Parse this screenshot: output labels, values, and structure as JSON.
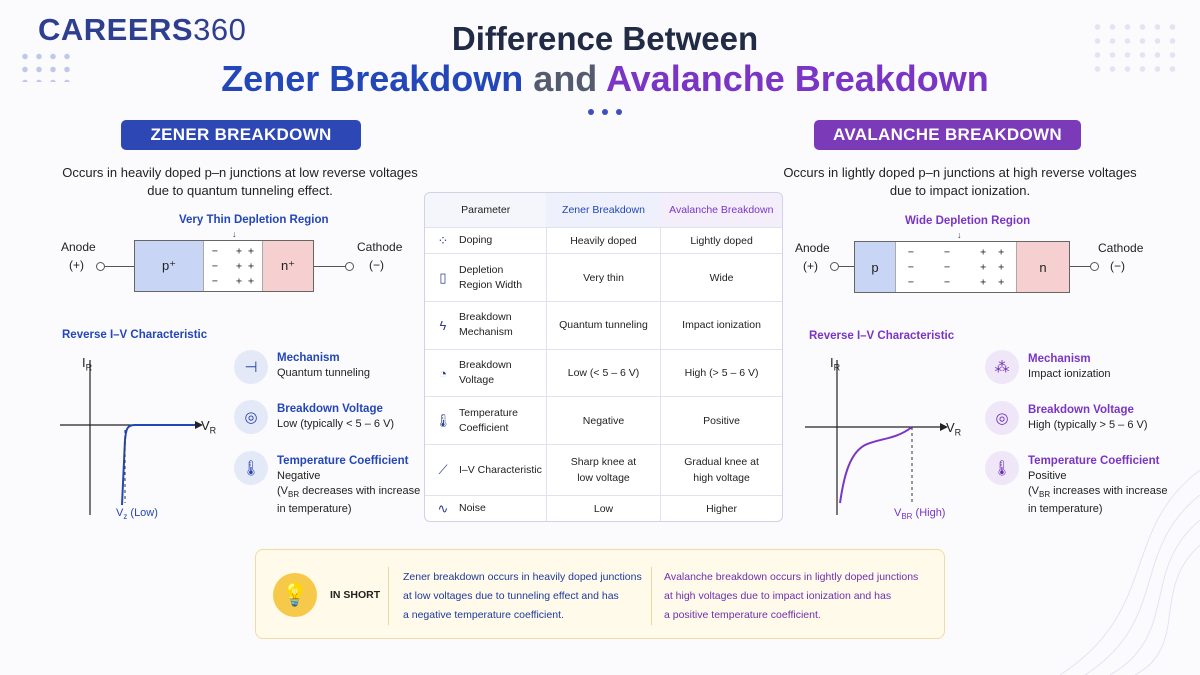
{
  "logo": {
    "word": "CAREERS",
    "number": "360"
  },
  "title": {
    "line1": "Difference Between",
    "zener": "Zener Breakdown",
    "and": "and",
    "avalanche": "Avalanche Breakdown"
  },
  "zener": {
    "pill": "ZENER BREAKDOWN",
    "desc1": "Occurs in heavily doped p–n junctions at low reverse voltages",
    "desc2": "due to quantum tunneling effect.",
    "region_label": "Very Thin Depletion Region",
    "anode": "Anode",
    "anode_sign": "(+)",
    "cathode": "Cathode",
    "cathode_sign": "(−)",
    "p_label": "p⁺",
    "n_label": "n⁺",
    "iv_title": "Reverse I–V Characteristic",
    "ir": "I",
    "ir_sub": "R",
    "vr": "V",
    "vr_sub": "R",
    "vz_label": "V",
    "vz_sub": "z",
    "vz_tail": " (Low)",
    "features": [
      {
        "icon": "mechanism-icon",
        "title": "Mechanism",
        "lines": [
          "Quantum tunneling"
        ]
      },
      {
        "icon": "target-icon",
        "title": "Breakdown Voltage",
        "lines": [
          "Low (typically < 5 – 6 V)"
        ]
      },
      {
        "icon": "thermometer-icon",
        "title": "Temperature Coefficient",
        "lines": [
          "Negative",
          "(V",
          "BR",
          " decreases with increase",
          "in temperature)"
        ]
      }
    ]
  },
  "avalanche": {
    "pill": "AVALANCHE BREAKDOWN",
    "desc1": "Occurs in lightly doped p–n junctions at high reverse voltages",
    "desc2": "due to impact ionization.",
    "region_label": "Wide Depletion Region",
    "anode": "Anode",
    "anode_sign": "(+)",
    "cathode": "Cathode",
    "cathode_sign": "(−)",
    "p_label": "p",
    "n_label": "n",
    "iv_title": "Reverse I–V Characteristic",
    "ir": "I",
    "ir_sub": "R",
    "vr": "V",
    "vr_sub": "R",
    "vbr_label": "V",
    "vbr_sub": "BR",
    "vbr_tail": " (High)",
    "features": [
      {
        "icon": "network-icon",
        "title": "Mechanism",
        "lines": [
          "Impact ionization"
        ]
      },
      {
        "icon": "target-icon",
        "title": "Breakdown Voltage",
        "lines": [
          "High (typically > 5 – 6 V)"
        ]
      },
      {
        "icon": "thermometer-icon",
        "title": "Temperature Coefficient",
        "lines": [
          "Positive",
          "(V",
          "BR",
          " increases with increase",
          "in temperature)"
        ]
      }
    ]
  },
  "table": {
    "headers": [
      "Parameter",
      "Zener Breakdown",
      "Avalanche Breakdown"
    ],
    "rows": [
      {
        "icon": "doping-icon",
        "glyph": "⁘",
        "param": [
          "Doping"
        ],
        "zener": [
          "Heavily doped"
        ],
        "avalanche": [
          "Lightly doped"
        ]
      },
      {
        "icon": "region-width-icon",
        "glyph": "▯",
        "param": [
          "Depletion",
          "Region Width"
        ],
        "zener": [
          "Very thin"
        ],
        "avalanche": [
          "Wide"
        ]
      },
      {
        "icon": "lightning-icon",
        "glyph": "ϟ",
        "param": [
          "Breakdown",
          "Mechanism"
        ],
        "zener": [
          "Quantum tunneling"
        ],
        "avalanche": [
          "Impact ionization"
        ]
      },
      {
        "icon": "gauge-icon",
        "glyph": "◔",
        "param": [
          "Breakdown",
          "Voltage"
        ],
        "zener": [
          "Low (< 5 – 6 V)"
        ],
        "avalanche": [
          "High (> 5 – 6 V)"
        ]
      },
      {
        "icon": "thermometer-icon",
        "glyph": "🌡",
        "param": [
          "Temperature",
          "Coefficient"
        ],
        "zener": [
          "Negative"
        ],
        "avalanche": [
          "Positive"
        ]
      },
      {
        "icon": "iv-curve-icon",
        "glyph": "⟋",
        "param": [
          "I–V Characteristic"
        ],
        "zener": [
          "Sharp knee at",
          "low voltage"
        ],
        "avalanche": [
          "Gradual knee at",
          "high voltage"
        ]
      },
      {
        "icon": "noise-icon",
        "glyph": "∿",
        "param": [
          "Noise"
        ],
        "zener": [
          "Low"
        ],
        "avalanche": [
          "Higher"
        ]
      }
    ]
  },
  "summary": {
    "label": "IN SHORT",
    "zener_lines": [
      "Zener breakdown occurs in heavily doped junctions",
      "at low voltages due to tunneling effect and has",
      "a negative temperature coefficient."
    ],
    "avalanche_lines": [
      "Avalanche breakdown occurs in lightly doped junctions",
      "at high voltages due to impact ionization and has",
      "a positive temperature coefficient."
    ]
  },
  "colors": {
    "zener": "#2d47b5",
    "avalanche": "#7b3ab8",
    "p_region": "#c9d5f4",
    "n_region": "#f6d0d0"
  }
}
